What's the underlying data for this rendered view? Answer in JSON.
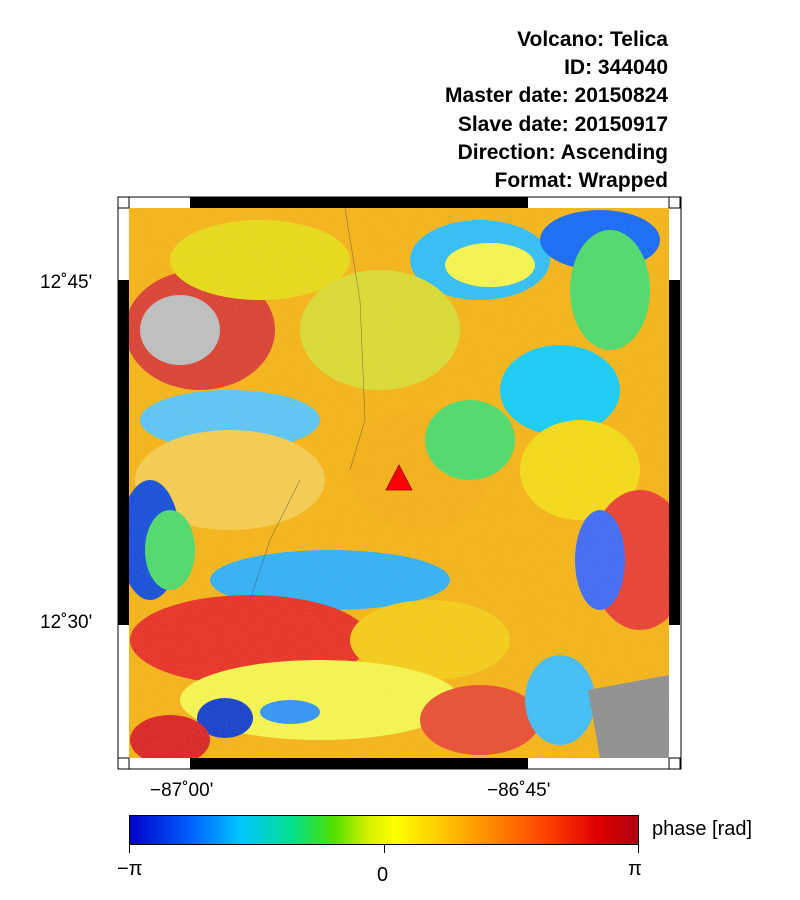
{
  "header": {
    "volcano": "Volcano: Telica",
    "id": "ID: 344040",
    "master_date": "Master date: 20150824",
    "slave_date": "Slave date: 20150917",
    "direction": "Direction: Ascending",
    "format": "Format: Wrapped"
  },
  "map": {
    "lat_labels": [
      "12˚45'",
      "12˚30'"
    ],
    "lon_labels": [
      "−87˚00'",
      "−86˚45'"
    ],
    "marker_color": "#ff0000",
    "marker_icon": "volcano-triangle-icon"
  },
  "colorbar": {
    "title": "phase [rad]",
    "min_label": "−π",
    "mid_label": "0",
    "max_label": "π",
    "colors": [
      "#0000c8",
      "#00c8ff",
      "#4ee000",
      "#ffff00",
      "#ff9000",
      "#e00000"
    ]
  }
}
